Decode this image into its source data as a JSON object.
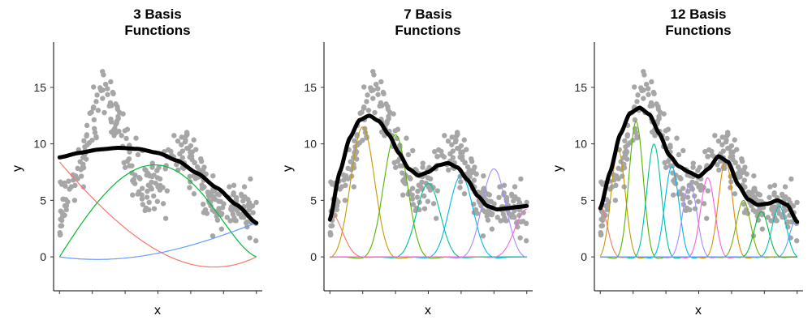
{
  "chart_data": [
    {
      "type": "scatter",
      "title_lines": [
        "3 Basis",
        "Functions"
      ],
      "xlabel": "x",
      "ylabel": "y",
      "yticks": [
        0,
        5,
        10,
        15
      ],
      "ylim": [
        -3,
        19
      ],
      "xlim": [
        -0.03,
        1.03
      ],
      "n_basis": 3,
      "fit": {
        "x": [
          0,
          0.1,
          0.2,
          0.3,
          0.4,
          0.5,
          0.6,
          0.7,
          0.8,
          0.9,
          1.0
        ],
        "y": [
          8.8,
          9.2,
          9.5,
          9.65,
          9.55,
          9.2,
          8.5,
          7.4,
          6.1,
          4.6,
          3.0
        ]
      }
    },
    {
      "type": "scatter",
      "title_lines": [
        "7 Basis",
        "Functions"
      ],
      "xlabel": "x",
      "ylabel": "y",
      "yticks": [
        0,
        5,
        10,
        15
      ],
      "ylim": [
        -3,
        19
      ],
      "xlim": [
        -0.03,
        1.03
      ],
      "n_basis": 7,
      "fit": {
        "x": [
          0,
          0.05,
          0.1,
          0.15,
          0.2,
          0.25,
          0.3,
          0.35,
          0.4,
          0.45,
          0.5,
          0.55,
          0.6,
          0.65,
          0.7,
          0.75,
          0.8,
          0.85,
          0.9,
          0.95,
          1.0
        ],
        "y": [
          3.3,
          7.5,
          10.5,
          12.1,
          12.5,
          12.0,
          10.8,
          9.2,
          7.8,
          7.2,
          7.5,
          8.1,
          8.3,
          7.9,
          6.8,
          5.4,
          4.5,
          4.2,
          4.3,
          4.4,
          4.5
        ]
      }
    },
    {
      "type": "scatter",
      "title_lines": [
        "12 Basis",
        "Functions"
      ],
      "xlabel": "x",
      "ylabel": "y",
      "yticks": [
        0,
        5,
        10,
        15
      ],
      "ylim": [
        -3,
        19
      ],
      "xlim": [
        -0.03,
        1.03
      ],
      "n_basis": 12,
      "fit": {
        "x": [
          0,
          0.05,
          0.1,
          0.15,
          0.2,
          0.25,
          0.3,
          0.35,
          0.4,
          0.45,
          0.5,
          0.55,
          0.6,
          0.65,
          0.7,
          0.75,
          0.8,
          0.85,
          0.9,
          0.95,
          1.0
        ],
        "y": [
          4.3,
          7.5,
          10.8,
          12.7,
          13.2,
          12.6,
          10.9,
          9.0,
          8.0,
          7.5,
          7.1,
          7.8,
          8.9,
          8.4,
          6.4,
          5.1,
          4.6,
          4.7,
          5.0,
          4.6,
          3.1
        ]
      }
    }
  ]
}
